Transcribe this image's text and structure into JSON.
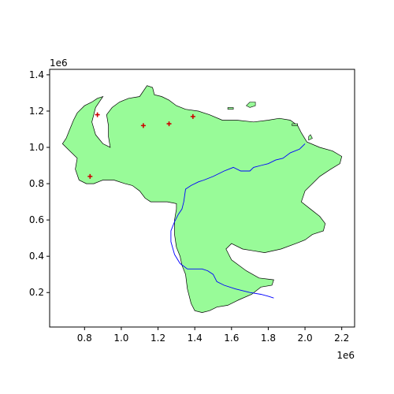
{
  "chart_data": {
    "type": "scatter",
    "title": "",
    "xlabel": "",
    "ylabel": "",
    "x_offset_label": "1e6",
    "y_offset_label": "1e6",
    "xlim": [
      0.61,
      2.27
    ],
    "ylim": [
      0.01,
      1.43
    ],
    "x_ticks": [
      0.8,
      1.0,
      1.2,
      1.4,
      1.6,
      1.8,
      2.0,
      2.2
    ],
    "x_tick_labels": [
      "0.8",
      "1.0",
      "1.2",
      "1.4",
      "1.6",
      "1.8",
      "2.0",
      "2.2"
    ],
    "y_ticks": [
      0.2,
      0.4,
      0.6,
      0.8,
      1.0,
      1.2,
      1.4
    ],
    "y_tick_labels": [
      "0.2",
      "0.4",
      "0.6",
      "0.8",
      "1.0",
      "1.2",
      "1.4"
    ],
    "grid": false,
    "colors": {
      "land_fill": "#98fb98",
      "land_edge": "#000000",
      "river": "#0000ff",
      "city_marker": "#cc0000",
      "axes": "#000000"
    },
    "region_outline": [
      [
        0.68,
        1.02
      ],
      [
        0.7,
        1.05
      ],
      [
        0.72,
        1.1
      ],
      [
        0.74,
        1.15
      ],
      [
        0.76,
        1.19
      ],
      [
        0.8,
        1.23
      ],
      [
        0.84,
        1.25
      ],
      [
        0.87,
        1.27
      ],
      [
        0.9,
        1.28
      ],
      [
        0.86,
        1.22
      ],
      [
        0.84,
        1.14
      ],
      [
        0.86,
        1.07
      ],
      [
        0.9,
        1.02
      ],
      [
        0.94,
        1.0
      ],
      [
        0.93,
        1.06
      ],
      [
        0.93,
        1.12
      ],
      [
        0.92,
        1.18
      ],
      [
        0.95,
        1.22
      ],
      [
        0.99,
        1.25
      ],
      [
        1.04,
        1.27
      ],
      [
        1.1,
        1.28
      ],
      [
        1.14,
        1.34
      ],
      [
        1.17,
        1.33
      ],
      [
        1.18,
        1.29
      ],
      [
        1.22,
        1.28
      ],
      [
        1.26,
        1.26
      ],
      [
        1.3,
        1.23
      ],
      [
        1.35,
        1.21
      ],
      [
        1.42,
        1.2
      ],
      [
        1.48,
        1.18
      ],
      [
        1.55,
        1.15
      ],
      [
        1.63,
        1.15
      ],
      [
        1.72,
        1.14
      ],
      [
        1.8,
        1.15
      ],
      [
        1.86,
        1.16
      ],
      [
        1.92,
        1.15
      ],
      [
        1.96,
        1.12
      ],
      [
        1.98,
        1.08
      ],
      [
        2.01,
        1.03
      ],
      [
        2.08,
        1.0
      ],
      [
        2.15,
        0.98
      ],
      [
        2.2,
        0.95
      ],
      [
        2.19,
        0.91
      ],
      [
        2.14,
        0.88
      ],
      [
        2.08,
        0.84
      ],
      [
        2.04,
        0.8
      ],
      [
        2.0,
        0.76
      ],
      [
        1.98,
        0.7
      ],
      [
        2.03,
        0.66
      ],
      [
        2.08,
        0.62
      ],
      [
        2.11,
        0.58
      ],
      [
        2.1,
        0.54
      ],
      [
        2.04,
        0.52
      ],
      [
        2.0,
        0.49
      ],
      [
        1.95,
        0.47
      ],
      [
        1.87,
        0.44
      ],
      [
        1.78,
        0.42
      ],
      [
        1.72,
        0.43
      ],
      [
        1.66,
        0.44
      ],
      [
        1.6,
        0.47
      ],
      [
        1.57,
        0.44
      ],
      [
        1.6,
        0.38
      ],
      [
        1.68,
        0.32
      ],
      [
        1.75,
        0.28
      ],
      [
        1.83,
        0.27
      ],
      [
        1.82,
        0.24
      ],
      [
        1.76,
        0.23
      ],
      [
        1.71,
        0.19
      ],
      [
        1.64,
        0.16
      ],
      [
        1.58,
        0.13
      ],
      [
        1.52,
        0.12
      ],
      [
        1.48,
        0.1
      ],
      [
        1.44,
        0.09
      ],
      [
        1.4,
        0.1
      ],
      [
        1.38,
        0.14
      ],
      [
        1.36,
        0.22
      ],
      [
        1.35,
        0.3
      ],
      [
        1.33,
        0.35
      ],
      [
        1.32,
        0.4
      ],
      [
        1.3,
        0.45
      ],
      [
        1.29,
        0.52
      ],
      [
        1.29,
        0.6
      ],
      [
        1.3,
        0.66
      ],
      [
        1.3,
        0.69
      ],
      [
        1.25,
        0.7
      ],
      [
        1.2,
        0.7
      ],
      [
        1.16,
        0.7
      ],
      [
        1.13,
        0.72
      ],
      [
        1.1,
        0.76
      ],
      [
        1.06,
        0.79
      ],
      [
        1.02,
        0.8
      ],
      [
        0.96,
        0.82
      ],
      [
        0.9,
        0.82
      ],
      [
        0.85,
        0.8
      ],
      [
        0.81,
        0.8
      ],
      [
        0.77,
        0.82
      ],
      [
        0.75,
        0.88
      ],
      [
        0.76,
        0.94
      ],
      [
        0.72,
        0.98
      ],
      [
        0.68,
        1.02
      ]
    ],
    "islands": [
      [
        [
          1.68,
          1.23
        ],
        [
          1.7,
          1.25
        ],
        [
          1.73,
          1.25
        ],
        [
          1.73,
          1.23
        ],
        [
          1.7,
          1.22
        ],
        [
          1.68,
          1.23
        ]
      ],
      [
        [
          1.58,
          1.22
        ],
        [
          1.61,
          1.22
        ],
        [
          1.61,
          1.21
        ],
        [
          1.58,
          1.21
        ],
        [
          1.58,
          1.22
        ]
      ],
      [
        [
          1.93,
          1.13
        ],
        [
          1.96,
          1.13
        ],
        [
          1.96,
          1.12
        ],
        [
          1.93,
          1.12
        ],
        [
          1.93,
          1.13
        ]
      ],
      [
        [
          2.02,
          1.06
        ],
        [
          2.03,
          1.07
        ],
        [
          2.04,
          1.05
        ],
        [
          2.02,
          1.04
        ],
        [
          2.02,
          1.06
        ]
      ]
    ],
    "river_path": [
      [
        2.0,
        1.02
      ],
      [
        1.97,
        0.99
      ],
      [
        1.92,
        0.97
      ],
      [
        1.88,
        0.94
      ],
      [
        1.84,
        0.93
      ],
      [
        1.8,
        0.91
      ],
      [
        1.76,
        0.9
      ],
      [
        1.72,
        0.89
      ],
      [
        1.7,
        0.87
      ],
      [
        1.65,
        0.87
      ],
      [
        1.61,
        0.89
      ],
      [
        1.56,
        0.87
      ],
      [
        1.5,
        0.84
      ],
      [
        1.45,
        0.82
      ],
      [
        1.42,
        0.81
      ],
      [
        1.38,
        0.79
      ],
      [
        1.35,
        0.77
      ],
      [
        1.34,
        0.7
      ],
      [
        1.33,
        0.66
      ],
      [
        1.31,
        0.63
      ],
      [
        1.29,
        0.59
      ],
      [
        1.27,
        0.54
      ],
      [
        1.27,
        0.48
      ],
      [
        1.29,
        0.41
      ],
      [
        1.32,
        0.36
      ],
      [
        1.36,
        0.33
      ],
      [
        1.4,
        0.33
      ],
      [
        1.44,
        0.33
      ],
      [
        1.47,
        0.32
      ],
      [
        1.5,
        0.3
      ],
      [
        1.52,
        0.26
      ],
      [
        1.56,
        0.24
      ],
      [
        1.62,
        0.22
      ],
      [
        1.7,
        0.2
      ],
      [
        1.76,
        0.19
      ],
      [
        1.8,
        0.18
      ],
      [
        1.83,
        0.17
      ]
    ],
    "points": [
      {
        "x": 0.87,
        "y": 1.18
      },
      {
        "x": 1.12,
        "y": 1.12
      },
      {
        "x": 1.26,
        "y": 1.13
      },
      {
        "x": 1.39,
        "y": 1.17
      },
      {
        "x": 0.83,
        "y": 0.84
      }
    ]
  }
}
